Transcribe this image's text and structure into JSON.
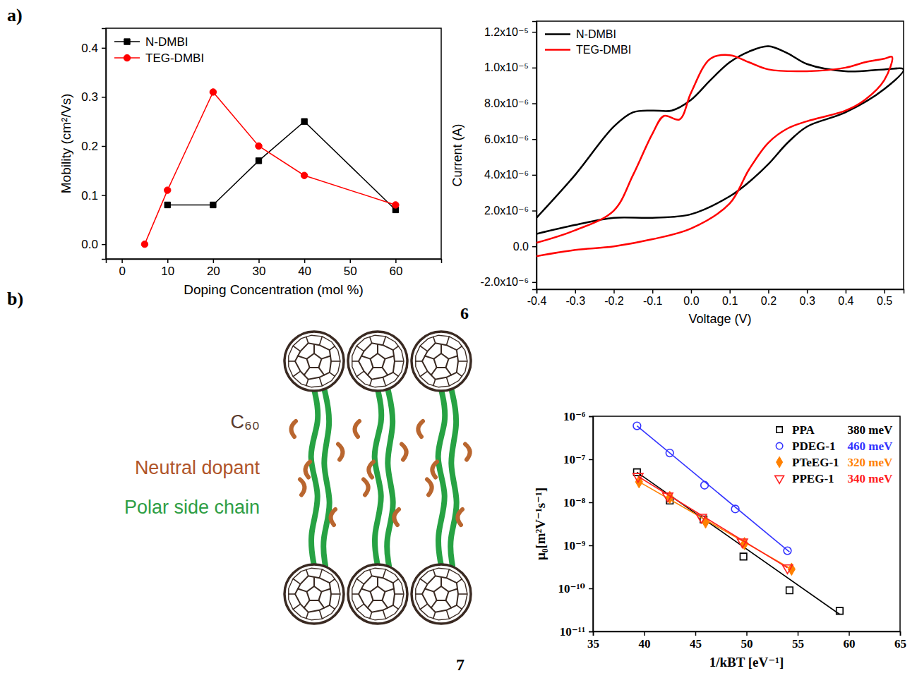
{
  "labels": {
    "panel_a": "a)",
    "panel_b": "b)",
    "figure_6": "6",
    "figure_7": "7"
  },
  "diagram": {
    "labels": [
      "C₆₀",
      "Neutral dopant",
      "Polar side chain"
    ]
  },
  "chart_data": [
    {
      "type": "line",
      "x_label": "Doping Concentration (mol %)",
      "y_label": "Mobility (cm²/Vs)",
      "xlim": [
        -3.5,
        70
      ],
      "xticks": [
        0,
        10,
        20,
        30,
        40,
        50,
        60
      ],
      "ylim": [
        -0.03,
        0.44
      ],
      "yticks": [
        {
          "value": 0,
          "label": "0.0"
        },
        0.1,
        0.2,
        0.3,
        0.4
      ],
      "legend": "upper left",
      "series": [
        {
          "name": "N-DMBI",
          "color": "#000000",
          "marker": "square",
          "x": [
            10,
            20,
            30,
            40,
            60
          ],
          "values": [
            0.08,
            0.08,
            0.17,
            0.25,
            0.07
          ]
        },
        {
          "name": "TEG-DMBI",
          "color": "#ff0000",
          "marker": "circle",
          "x": [
            5,
            10,
            20,
            30,
            40,
            60
          ],
          "values": [
            0,
            0.11,
            0.31,
            0.2,
            0.14,
            0.08
          ]
        }
      ]
    },
    {
      "type": "line",
      "x_label": "Voltage (V)",
      "y_label": "Current (A)",
      "xlim": [
        -0.4,
        0.55
      ],
      "xticks": [
        -0.4,
        -0.3,
        -0.2,
        -0.1,
        {
          "value": 0,
          "label": "0.0"
        },
        0.1,
        0.2,
        0.3,
        0.4,
        0.5
      ],
      "ylim": [
        -2.4e-06,
        1.26e-05
      ],
      "yticks": [
        {
          "value": -2e-06,
          "label": "-2.0x10⁻⁶"
        },
        {
          "value": 0,
          "label": "0.0"
        },
        {
          "value": 2e-06,
          "label": "2.0x10⁻⁶"
        },
        {
          "value": 4e-06,
          "label": "4.0x10⁻⁶"
        },
        {
          "value": 6e-06,
          "label": "6.0x10⁻⁶"
        },
        {
          "value": 8e-06,
          "label": "8.0x10⁻⁶"
        },
        {
          "value": 1e-05,
          "label": "1.0x10⁻⁵"
        },
        {
          "value": 1.2e-05,
          "label": "1.2x10⁻⁵"
        }
      ],
      "legend": "upper left",
      "series": [
        {
          "name": "N-DMBI",
          "color": "#000000",
          "x": [
            -0.4,
            -0.3,
            -0.2,
            -0.1,
            0.0,
            0.1,
            0.15,
            0.2,
            0.25,
            0.3,
            0.4,
            0.5,
            0.55,
            0.5,
            0.4,
            0.3,
            0.25,
            0.2,
            0.15,
            0.1,
            0.05,
            0.0,
            -0.05,
            -0.1,
            -0.15,
            -0.2,
            -0.3,
            -0.4
          ],
          "values": [
            7e-07,
            1.2e-06,
            1.6e-06,
            1.6e-06,
            1.8e-06,
            2.8e-06,
            3.6e-06,
            4.6e-06,
            5.8e-06,
            6.7e-06,
            7.5e-06,
            8.8e-06,
            9.9e-06,
            9.9e-06,
            9.8e-06,
            1.02e-05,
            1.08e-05,
            1.12e-05,
            1.09e-05,
            1.03e-05,
            9.3e-06,
            8.2e-06,
            7.6e-06,
            7.6e-06,
            7.5e-06,
            6.7e-06,
            4e-06,
            1.6e-06
          ]
        },
        {
          "name": "TEG-DMBI",
          "color": "#ff0000",
          "x": [
            -0.4,
            -0.3,
            -0.2,
            -0.1,
            0.0,
            0.1,
            0.15,
            0.2,
            0.25,
            0.3,
            0.4,
            0.45,
            0.5,
            0.52,
            0.5,
            0.45,
            0.4,
            0.3,
            0.2,
            0.15,
            0.1,
            0.05,
            0.0,
            -0.03,
            -0.07,
            -0.1,
            -0.15,
            -0.2,
            -0.3,
            -0.4
          ],
          "values": [
            -5.5e-07,
            -2e-07,
            0,
            4e-07,
            1e-06,
            2.4e-06,
            4.3e-06,
            5.8e-06,
            6.6e-06,
            7e-06,
            7.6e-06,
            8.2e-06,
            9.3e-06,
            1.06e-05,
            1.05e-05,
            1.03e-05,
            1e-05,
            9.8e-06,
            9.9e-06,
            1.03e-05,
            1.07e-05,
            1.05e-05,
            8.6e-06,
            7.1e-06,
            7.3e-06,
            6.3e-06,
            4e-06,
            2e-06,
            9e-07,
            2e-07
          ]
        }
      ]
    },
    {
      "type": "scatter",
      "x_label": "1/kBT [eV⁻¹]",
      "y_label": "μ₀[m²V⁻¹s⁻¹]",
      "log": "y",
      "xlim": [
        35,
        65
      ],
      "xticks": [
        35,
        40,
        45,
        50,
        55,
        60,
        65
      ],
      "ylim": [
        1e-11,
        1e-06
      ],
      "yticks": [
        {
          "value": 1e-11,
          "label": "10⁻¹¹"
        },
        {
          "value": 1e-10,
          "label": "10⁻¹⁰"
        },
        {
          "value": 1e-09,
          "label": "10⁻⁹"
        },
        {
          "value": 1e-08,
          "label": "10⁻⁸"
        },
        {
          "value": 1e-07,
          "label": "10⁻⁷"
        },
        {
          "value": 1e-06,
          "label": "10⁻⁶"
        }
      ],
      "legend": "upper right",
      "series": [
        {
          "name": "PPA",
          "annotation": "380 meV",
          "color": "#000000",
          "marker": "square-open",
          "x": [
            39.3,
            42.5,
            45.8,
            49.7,
            54.2,
            59.1
          ],
          "values": [
            5e-08,
            1.1e-08,
            4e-09,
            5.5e-10,
            9e-11,
            3e-11
          ],
          "fit": {
            "x": [
              39.3,
              59.1
            ],
            "values": [
              5e-08,
              2.5e-11
            ]
          }
        },
        {
          "name": "PDEG-1",
          "annotation": "460 meV",
          "color": "#3333ff",
          "marker": "circle-open",
          "x": [
            39.3,
            42.5,
            45.9,
            48.9,
            54.0
          ],
          "values": [
            6e-07,
            1.4e-07,
            2.5e-08,
            7e-09,
            7.5e-10
          ],
          "fit": {
            "x": [
              39.3,
              54.2
            ],
            "values": [
              6e-07,
              7e-10
            ]
          }
        },
        {
          "name": "PTeEG-1",
          "annotation": "320 meV",
          "color": "#ff8000",
          "marker": "diamond",
          "x": [
            39.5,
            42.5,
            46.0,
            49.8,
            54.4
          ],
          "values": [
            3e-08,
            1.3e-08,
            3.5e-09,
            1.1e-09,
            2.8e-10
          ],
          "fit": {
            "x": [
              39.5,
              54.4
            ],
            "values": [
              3e-08,
              2.8e-10
            ]
          }
        },
        {
          "name": "PPEG-1",
          "annotation": "340 meV",
          "color": "#ff2020",
          "marker": "triangle-down-open",
          "x": [
            39.4,
            42.3,
            45.6,
            49.6,
            54.0
          ],
          "values": [
            4e-08,
            1.4e-08,
            4.5e-09,
            1.2e-09,
            3e-10
          ],
          "fit": {
            "x": [
              39.4,
              54.0
            ],
            "values": [
              4e-08,
              3e-10
            ]
          }
        }
      ]
    }
  ]
}
